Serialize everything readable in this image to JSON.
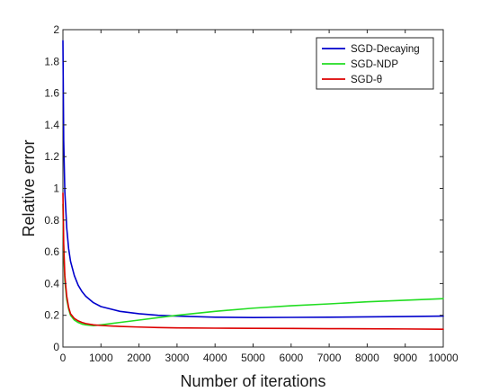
{
  "chart_data": {
    "type": "line",
    "xlabel": "Number of iterations",
    "ylabel": "Relative error",
    "xlim": [
      0,
      10000
    ],
    "ylim": [
      0,
      2
    ],
    "xticks": [
      "0",
      "1000",
      "2000",
      "3000",
      "4000",
      "5000",
      "6000",
      "7000",
      "8000",
      "9000",
      "10000"
    ],
    "yticks": [
      "0",
      "0.2",
      "0.4",
      "0.6",
      "0.8",
      "1",
      "1.2",
      "1.4",
      "1.6",
      "1.8",
      "2"
    ],
    "grid": false,
    "legend_position": "top-right",
    "series": [
      {
        "name": "SGD-Decaying",
        "color": "#0000cc",
        "x": [
          0,
          20,
          50,
          100,
          150,
          200,
          300,
          400,
          500,
          600,
          800,
          1000,
          1500,
          2000,
          2500,
          3000,
          4000,
          5000,
          6000,
          7000,
          8000,
          9000,
          10000
        ],
        "y": [
          1.93,
          1.3,
          0.98,
          0.75,
          0.62,
          0.54,
          0.45,
          0.39,
          0.35,
          0.32,
          0.28,
          0.255,
          0.225,
          0.21,
          0.2,
          0.195,
          0.188,
          0.186,
          0.187,
          0.188,
          0.19,
          0.192,
          0.195
        ]
      },
      {
        "name": "SGD-NDP",
        "color": "#22dd22",
        "x": [
          0,
          20,
          50,
          100,
          150,
          200,
          300,
          400,
          500,
          600,
          800,
          1000,
          1500,
          2000,
          2500,
          3000,
          4000,
          5000,
          6000,
          7000,
          8000,
          9000,
          10000
        ],
        "y": [
          0.9,
          0.6,
          0.42,
          0.3,
          0.24,
          0.2,
          0.17,
          0.155,
          0.145,
          0.14,
          0.135,
          0.14,
          0.155,
          0.17,
          0.185,
          0.2,
          0.225,
          0.245,
          0.26,
          0.272,
          0.285,
          0.295,
          0.305
        ]
      },
      {
        "name": "SGD-θ",
        "color": "#dd0000",
        "x": [
          0,
          20,
          50,
          100,
          150,
          200,
          300,
          400,
          500,
          600,
          800,
          1000,
          1500,
          2000,
          2500,
          3000,
          4000,
          5000,
          6000,
          7000,
          8000,
          9000,
          10000
        ],
        "y": [
          0.97,
          0.65,
          0.45,
          0.32,
          0.25,
          0.21,
          0.18,
          0.165,
          0.155,
          0.148,
          0.14,
          0.136,
          0.13,
          0.126,
          0.123,
          0.121,
          0.119,
          0.118,
          0.117,
          0.116,
          0.115,
          0.114,
          0.112
        ]
      }
    ]
  }
}
